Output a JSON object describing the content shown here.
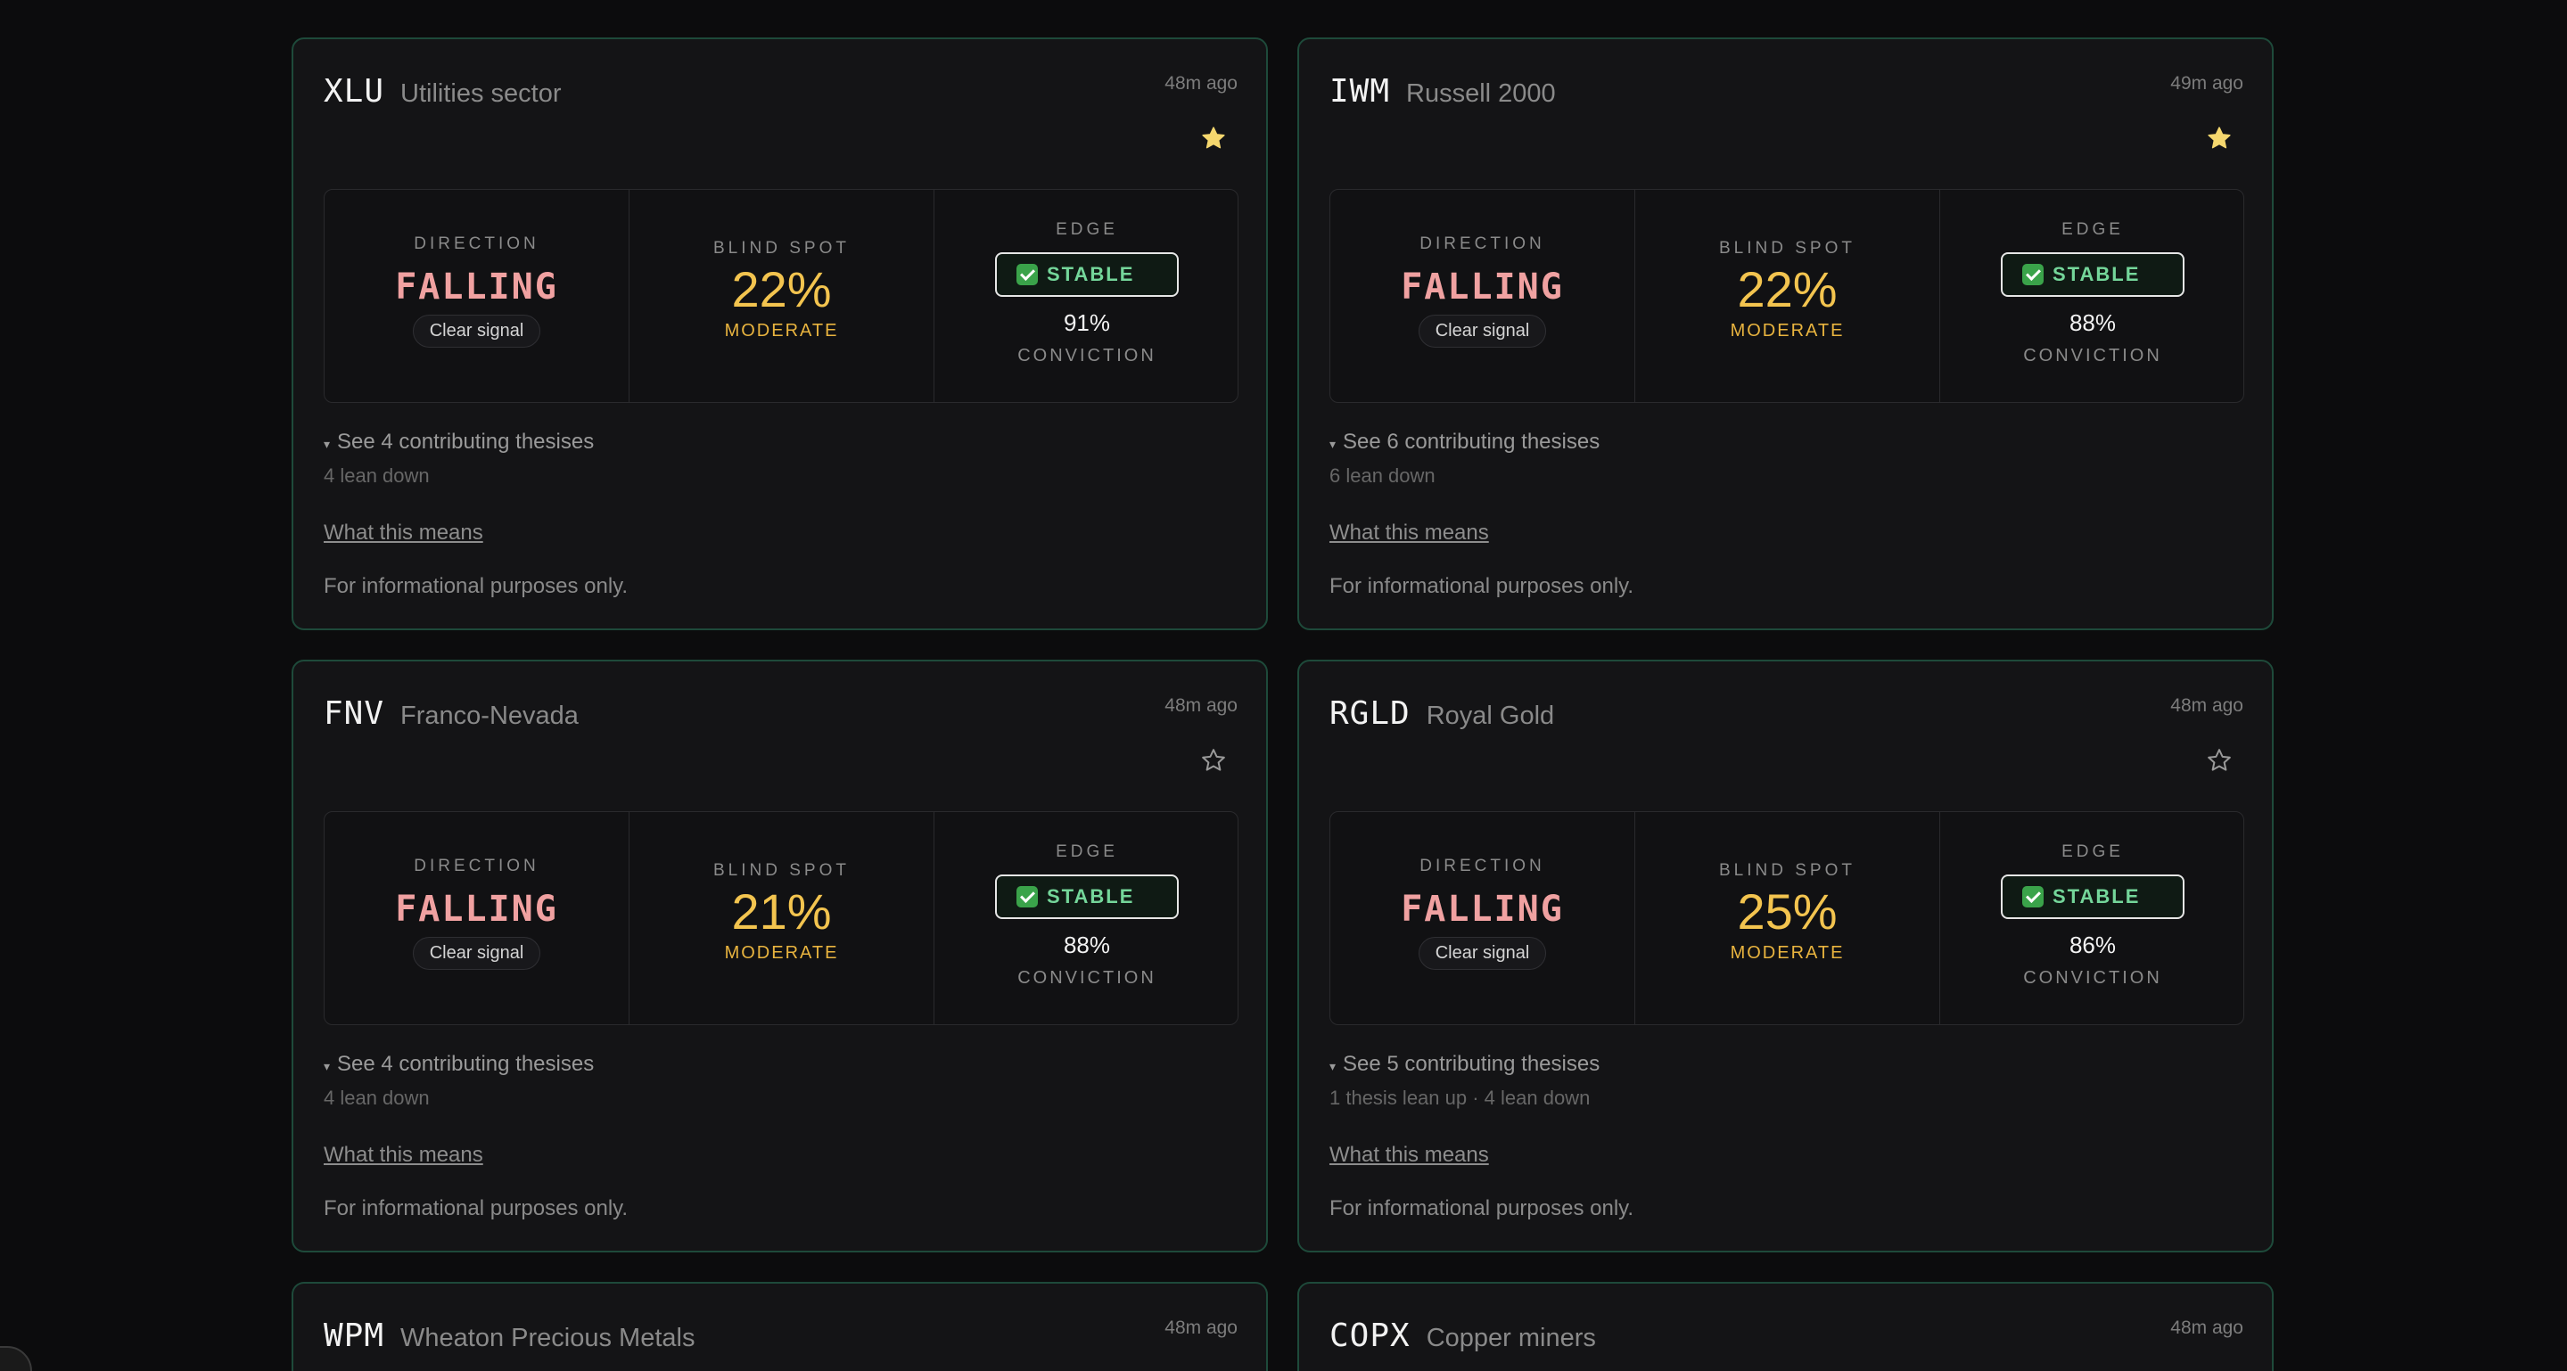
{
  "labels": {
    "direction": "DIRECTION",
    "blind_spot": "BLIND SPOT",
    "edge": "EDGE",
    "conviction": "CONVICTION",
    "clear_signal": "Clear signal",
    "what_this_means": "What this means",
    "disclaimer": "For informational purposes only."
  },
  "cards": [
    {
      "ticker": "XLU",
      "company": "Utilities sector",
      "time": "48m ago",
      "starred": true,
      "star_icon": "star-filled-icon",
      "direction": "FALLING",
      "blind_spot": "22%",
      "blind_level": "MODERATE",
      "edge": "STABLE",
      "conviction": "91%",
      "theses": "See 4 contributing thesises",
      "lean": "4 lean down"
    },
    {
      "ticker": "IWM",
      "company": "Russell 2000",
      "time": "49m ago",
      "starred": true,
      "star_icon": "star-filled-icon",
      "direction": "FALLING",
      "blind_spot": "22%",
      "blind_level": "MODERATE",
      "edge": "STABLE",
      "conviction": "88%",
      "theses": "See 6 contributing thesises",
      "lean": "6 lean down"
    },
    {
      "ticker": "FNV",
      "company": "Franco-Nevada",
      "time": "48m ago",
      "starred": false,
      "star_icon": "star-outline-icon",
      "direction": "FALLING",
      "blind_spot": "21%",
      "blind_level": "MODERATE",
      "edge": "STABLE",
      "conviction": "88%",
      "theses": "See 4 contributing thesises",
      "lean": "4 lean down"
    },
    {
      "ticker": "RGLD",
      "company": "Royal Gold",
      "time": "48m ago",
      "starred": false,
      "star_icon": "star-outline-icon",
      "direction": "FALLING",
      "blind_spot": "25%",
      "blind_level": "MODERATE",
      "edge": "STABLE",
      "conviction": "86%",
      "theses": "See 5 contributing thesises",
      "lean": "1 thesis lean up · 4 lean down"
    }
  ],
  "partial_cards": [
    {
      "ticker": "WPM",
      "company": "Wheaton Precious Metals",
      "time": "48m ago"
    },
    {
      "ticker": "COPX",
      "company": "Copper miners",
      "time": "48m ago"
    }
  ],
  "colors": {
    "card_border": "#1e4a3a",
    "falling": "#f0a1a1",
    "blind_spot": "#f3c44f",
    "stable": "#74d69a",
    "star": "#f5d76e"
  }
}
